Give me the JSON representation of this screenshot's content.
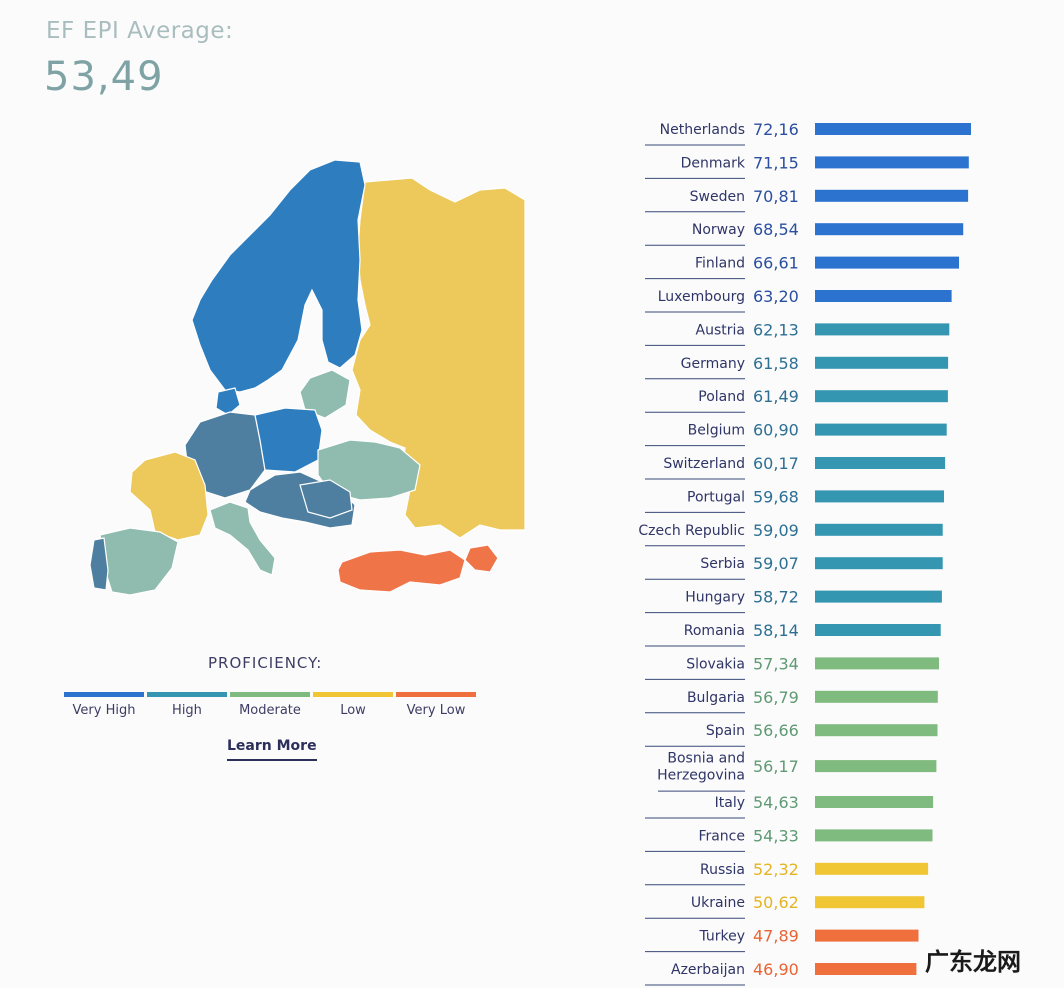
{
  "header": {
    "label": "EF EPI Average:",
    "value": "53,49"
  },
  "legend": {
    "title": "PROFICIENCY:",
    "items": [
      {
        "label": "Very High",
        "color": "#2c72cf"
      },
      {
        "label": "High",
        "color": "#3596b1"
      },
      {
        "label": "Moderate",
        "color": "#7fba7e"
      },
      {
        "label": "Low",
        "color": "#f0c635"
      },
      {
        "label": "Very Low",
        "color": "#f0703d"
      }
    ],
    "learn_more": "Learn More"
  },
  "watermark": "广东龙网",
  "map_colors": {
    "very_high": "#2d7dbf",
    "high": "#4f7fa0",
    "moderate": "#8fbcae",
    "low": "#ecc95a",
    "very_low": "#ef7549",
    "border": "#ffffff"
  },
  "chart_data": {
    "type": "bar",
    "orientation": "horizontal",
    "categories": [
      "Netherlands",
      "Denmark",
      "Sweden",
      "Norway",
      "Finland",
      "Luxembourg",
      "Austria",
      "Germany",
      "Poland",
      "Belgium",
      "Switzerland",
      "Portugal",
      "Czech Republic",
      "Serbia",
      "Hungary",
      "Romania",
      "Slovakia",
      "Bulgaria",
      "Spain",
      "Bosnia and Herzegovina",
      "Italy",
      "France",
      "Russia",
      "Ukraine",
      "Turkey",
      "Azerbaijan"
    ],
    "value_labels": [
      "72,16",
      "71,15",
      "70,81",
      "68,54",
      "66,61",
      "63,20",
      "62,13",
      "61,58",
      "61,49",
      "60,90",
      "60,17",
      "59,68",
      "59,09",
      "59,07",
      "58,72",
      "58,14",
      "57,34",
      "56,79",
      "56,66",
      "56,17",
      "54,63",
      "54,33",
      "52,32",
      "50,62",
      "47,89",
      "46,90"
    ],
    "values": [
      72.16,
      71.15,
      70.81,
      68.54,
      66.61,
      63.2,
      62.13,
      61.58,
      61.49,
      60.9,
      60.17,
      59.68,
      59.09,
      59.07,
      58.72,
      58.14,
      57.34,
      56.79,
      56.66,
      56.17,
      54.63,
      54.33,
      52.32,
      50.62,
      47.89,
      46.9
    ],
    "levels": [
      "Very High",
      "Very High",
      "Very High",
      "Very High",
      "Very High",
      "Very High",
      "High",
      "High",
      "High",
      "High",
      "High",
      "High",
      "High",
      "High",
      "High",
      "High",
      "Moderate",
      "Moderate",
      "Moderate",
      "Moderate",
      "Moderate",
      "Moderate",
      "Low",
      "Low",
      "Very Low",
      "Very Low"
    ],
    "level_colors": {
      "Very High": "#2c72cf",
      "High": "#3596b1",
      "Moderate": "#7fba7e",
      "Low": "#f0c635",
      "Very Low": "#f0703d"
    },
    "label_colors": {
      "Very High": "#2a4f9e",
      "High": "#2c6f93",
      "Moderate": "#5f9a73",
      "Low": "#e5b422",
      "Very Low": "#e86432"
    }
  }
}
